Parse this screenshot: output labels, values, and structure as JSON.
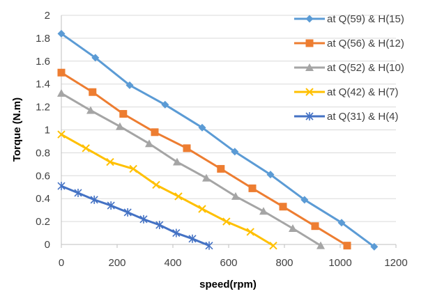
{
  "chart_data": {
    "type": "line",
    "title": "",
    "xlabel": "speed(rpm)",
    "ylabel": "Torque (N.m)",
    "xlim": [
      0,
      1200
    ],
    "ylim": [
      0,
      2
    ],
    "x_ticks": [
      "0",
      "200",
      "400",
      "600",
      "800",
      "1000",
      "1200"
    ],
    "y_ticks": [
      "0",
      "0.2",
      "0.4",
      "0.6",
      "0.8",
      "1",
      "1.2",
      "1.4",
      "1.6",
      "1.8",
      "2"
    ],
    "grid": "horizontal",
    "legend_position": "top-right",
    "series": [
      {
        "name": "at Q(59) & H(15)",
        "color": "#5b9bd5",
        "marker": "diamond",
        "points": [
          [
            0,
            1.84
          ],
          [
            122,
            1.63
          ],
          [
            245,
            1.39
          ],
          [
            372,
            1.22
          ],
          [
            505,
            1.02
          ],
          [
            622,
            0.81
          ],
          [
            750,
            0.61
          ],
          [
            872,
            0.39
          ],
          [
            1005,
            0.19
          ],
          [
            1122,
            -0.02
          ]
        ]
      },
      {
        "name": "at Q(56) & H(12)",
        "color": "#ed7d31",
        "marker": "square",
        "points": [
          [
            0,
            1.5
          ],
          [
            112,
            1.33
          ],
          [
            222,
            1.14
          ],
          [
            335,
            0.98
          ],
          [
            450,
            0.84
          ],
          [
            572,
            0.66
          ],
          [
            685,
            0.49
          ],
          [
            795,
            0.33
          ],
          [
            910,
            0.16
          ],
          [
            1025,
            -0.01
          ]
        ]
      },
      {
        "name": "at Q(52) & H(10)",
        "color": "#a5a5a5",
        "marker": "triangle",
        "points": [
          [
            0,
            1.32
          ],
          [
            105,
            1.17
          ],
          [
            210,
            1.03
          ],
          [
            315,
            0.88
          ],
          [
            415,
            0.72
          ],
          [
            520,
            0.58
          ],
          [
            625,
            0.42
          ],
          [
            725,
            0.29
          ],
          [
            830,
            0.14
          ],
          [
            930,
            -0.01
          ]
        ]
      },
      {
        "name": "at Q(42) & H(7)",
        "color": "#ffc000",
        "marker": "x",
        "points": [
          [
            0,
            0.96
          ],
          [
            88,
            0.84
          ],
          [
            175,
            0.72
          ],
          [
            258,
            0.66
          ],
          [
            340,
            0.52
          ],
          [
            420,
            0.42
          ],
          [
            505,
            0.31
          ],
          [
            592,
            0.2
          ],
          [
            678,
            0.11
          ],
          [
            760,
            -0.01
          ]
        ]
      },
      {
        "name": "at Q(31) & H(4)",
        "color": "#4472c4",
        "marker": "asterisk",
        "points": [
          [
            0,
            0.51
          ],
          [
            60,
            0.45
          ],
          [
            118,
            0.39
          ],
          [
            178,
            0.34
          ],
          [
            238,
            0.28
          ],
          [
            295,
            0.22
          ],
          [
            352,
            0.17
          ],
          [
            412,
            0.1
          ],
          [
            470,
            0.05
          ],
          [
            530,
            -0.01
          ]
        ]
      }
    ]
  }
}
